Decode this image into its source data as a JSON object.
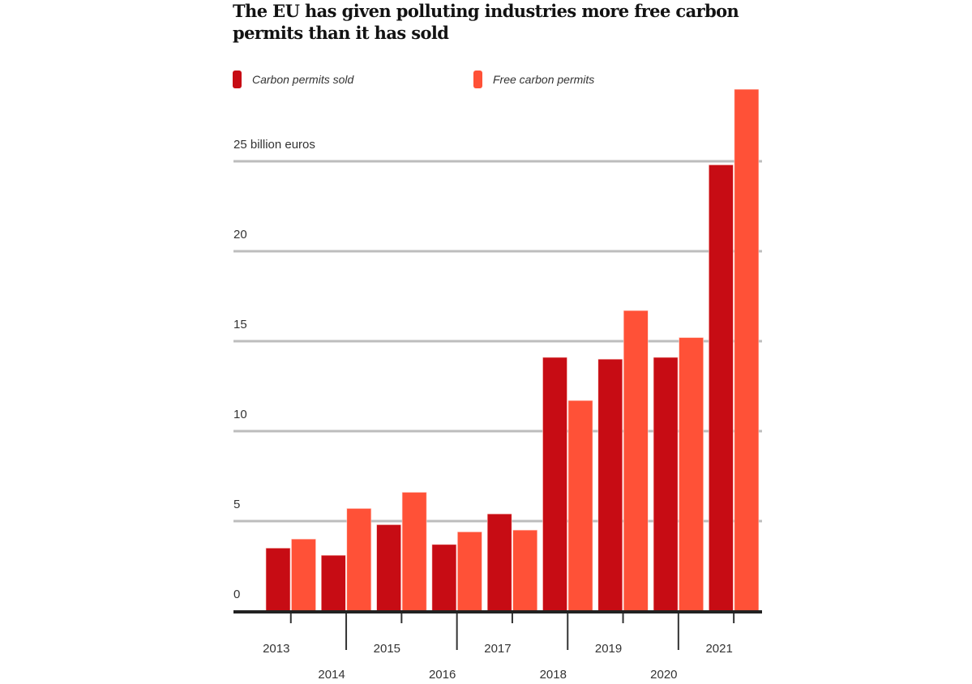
{
  "colors": {
    "sold": "#c70c14",
    "free": "#ff5137",
    "grid": "#bdbdbd",
    "axis": "#222222",
    "tick": "#333333"
  },
  "chart_data": {
    "type": "bar",
    "title": "The EU has given polluting industries more free carbon permits than it has sold",
    "xlabel": "",
    "ylabel": "billion euros",
    "ylim": [
      0,
      25
    ],
    "yticks": [
      0,
      5,
      10,
      15,
      20,
      25
    ],
    "ytick_labels": [
      "0",
      "5",
      "10",
      "15",
      "20",
      "25 billion euros"
    ],
    "grid": true,
    "legend_position": "top",
    "categories": [
      "2013",
      "2014",
      "2015",
      "2016",
      "2017",
      "2018",
      "2019",
      "2020",
      "2021"
    ],
    "series": [
      {
        "name": "Carbon permits sold",
        "key": "sold",
        "values": [
          3.5,
          3.1,
          4.8,
          3.7,
          5.4,
          14.1,
          14.0,
          14.1,
          24.8
        ]
      },
      {
        "name": "Free carbon permits",
        "key": "free",
        "values": [
          4.0,
          5.7,
          6.6,
          4.4,
          4.5,
          11.7,
          16.7,
          15.2,
          29.0
        ]
      }
    ]
  }
}
